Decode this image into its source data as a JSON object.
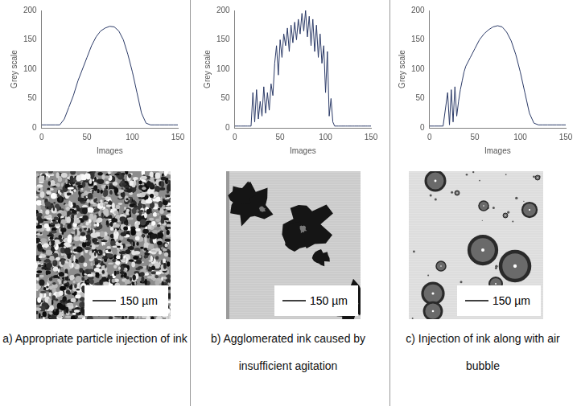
{
  "chart_data": [
    {
      "type": "line",
      "x": [
        0,
        5,
        10,
        15,
        20,
        25,
        30,
        35,
        40,
        45,
        50,
        55,
        60,
        65,
        70,
        75,
        80,
        85,
        90,
        95,
        100,
        105,
        110,
        115,
        120,
        125,
        130,
        135,
        140,
        145,
        150
      ],
      "values": [
        5,
        5,
        5,
        5,
        5,
        15,
        35,
        55,
        80,
        100,
        120,
        140,
        155,
        165,
        170,
        173,
        172,
        165,
        150,
        125,
        95,
        60,
        25,
        8,
        5,
        5,
        5,
        5,
        5,
        5,
        5
      ],
      "color": "#2b3a67",
      "xlim": [
        0,
        150
      ],
      "xticks": [
        0,
        50,
        100,
        150
      ],
      "ylim": [
        0,
        200
      ],
      "yticks": [
        0,
        50,
        100,
        150,
        200
      ],
      "x_label": "Images",
      "y_label": "Grey scale",
      "grid": false,
      "caption": "a) Appropriate particle injection of ink",
      "scale_bar": "150 µm"
    },
    {
      "type": "line",
      "x": [
        0,
        2,
        4,
        6,
        8,
        10,
        12,
        14,
        16,
        18,
        20,
        22,
        24,
        26,
        28,
        30,
        32,
        34,
        36,
        38,
        40,
        42,
        44,
        46,
        48,
        50,
        52,
        54,
        56,
        58,
        60,
        62,
        64,
        66,
        68,
        70,
        72,
        74,
        76,
        78,
        80,
        82,
        84,
        86,
        88,
        90,
        92,
        94,
        96,
        98,
        100,
        102,
        104,
        106,
        108,
        110,
        112,
        114,
        116,
        118,
        120,
        122,
        124,
        126,
        128,
        130,
        132,
        134,
        136,
        138,
        140,
        142,
        144,
        146,
        148,
        150
      ],
      "values": [
        3,
        3,
        3,
        3,
        3,
        3,
        3,
        3,
        3,
        3,
        60,
        10,
        65,
        15,
        45,
        20,
        70,
        25,
        60,
        30,
        75,
        55,
        110,
        140,
        90,
        150,
        120,
        160,
        140,
        170,
        130,
        175,
        145,
        180,
        150,
        185,
        160,
        195,
        165,
        200,
        155,
        190,
        140,
        185,
        130,
        175,
        120,
        160,
        110,
        140,
        60,
        130,
        20,
        50,
        10,
        3,
        3,
        3,
        3,
        3,
        3,
        3,
        3,
        3,
        3,
        3,
        3,
        3,
        3,
        3,
        3,
        3,
        3,
        3,
        3,
        3
      ],
      "color": "#2b3a67",
      "xlim": [
        0,
        150
      ],
      "xticks": [
        0,
        50,
        100,
        150
      ],
      "ylim": [
        0,
        200
      ],
      "yticks": [
        0,
        50,
        100,
        150,
        200
      ],
      "x_label": "Images",
      "y_label": "Grey scale",
      "grid": false,
      "caption": "b) Agglomerated ink caused by insufficient agitation",
      "scale_bar": "150 µm"
    },
    {
      "type": "line",
      "x": [
        0,
        5,
        10,
        15,
        20,
        22,
        24,
        26,
        28,
        30,
        32,
        34,
        36,
        38,
        40,
        45,
        50,
        55,
        60,
        65,
        70,
        75,
        80,
        85,
        90,
        95,
        100,
        105,
        110,
        115,
        120,
        125,
        130,
        135,
        140,
        145,
        150
      ],
      "values": [
        3,
        3,
        3,
        3,
        60,
        5,
        65,
        10,
        70,
        20,
        45,
        65,
        80,
        95,
        105,
        120,
        135,
        150,
        160,
        167,
        172,
        174,
        172,
        163,
        148,
        125,
        95,
        60,
        25,
        8,
        5,
        5,
        5,
        5,
        5,
        5,
        5
      ],
      "color": "#2b3a67",
      "xlim": [
        0,
        150
      ],
      "xticks": [
        0,
        50,
        100,
        150
      ],
      "ylim": [
        0,
        200
      ],
      "yticks": [
        0,
        50,
        100,
        150,
        200
      ],
      "x_label": "Images",
      "y_label": "Grey scale",
      "grid": false,
      "caption": "c) Injection of ink along with air bubble",
      "scale_bar": "150 µm"
    }
  ]
}
